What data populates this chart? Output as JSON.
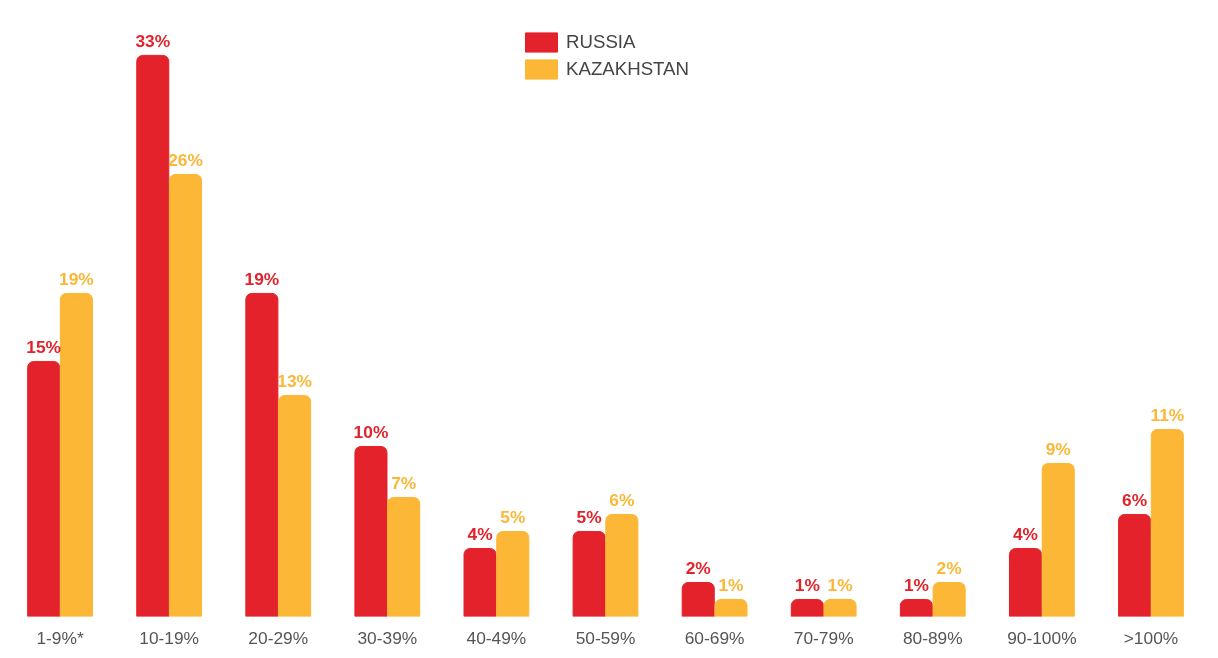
{
  "chart_data": {
    "type": "bar",
    "categories": [
      "1-9%*",
      "10-19%",
      "20-29%",
      "30-39%",
      "40-49%",
      "50-59%",
      "60-69%",
      "70-79%",
      "80-89%",
      "90-100%",
      ">100%"
    ],
    "series": [
      {
        "name": "RUSSIA",
        "color": "#e3222b",
        "values": [
          15,
          33,
          19,
          10,
          4,
          5,
          2,
          1,
          1,
          4,
          6
        ],
        "value_labels": [
          "15%",
          "33%",
          "19%",
          "10%",
          "4%",
          "5%",
          "2%",
          "1%",
          "1%",
          "4%",
          "6%"
        ]
      },
      {
        "name": "KAZAKHSTAN",
        "color": "#fbb735",
        "values": [
          19,
          26,
          13,
          7,
          5,
          6,
          1,
          1,
          2,
          9,
          11
        ],
        "value_labels": [
          "19%",
          "26%",
          "13%",
          "7%",
          "5%",
          "6%",
          "1%",
          "1%",
          "2%",
          "9%",
          "11%"
        ]
      }
    ],
    "legend": "top",
    "grid": false
  }
}
